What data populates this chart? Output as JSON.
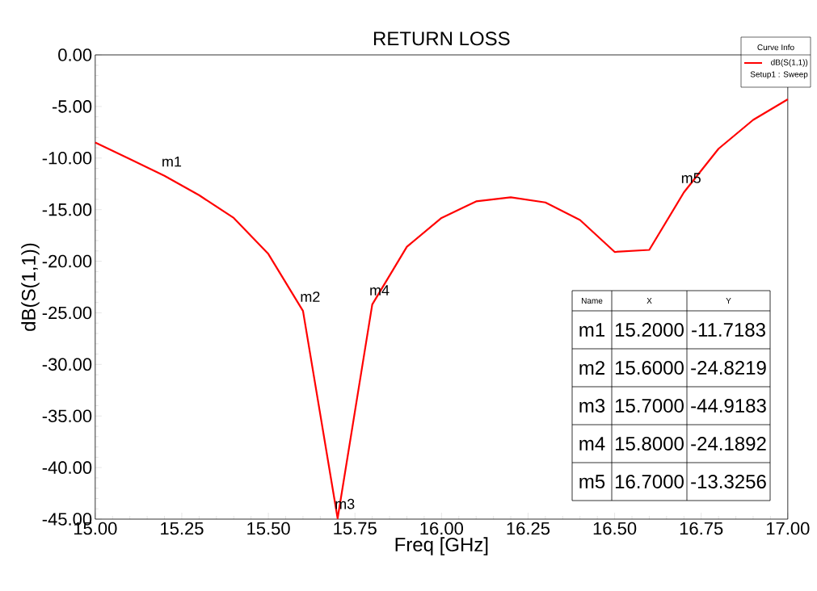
{
  "chart_data": {
    "type": "line",
    "title": "RETURN LOSS",
    "xlabel": "Freq [GHz]",
    "ylabel": "dB(S(1,1))",
    "legend_title": "Curve Info",
    "legend": "top right",
    "marker": "none",
    "line_style": "solid",
    "grid": false,
    "x": [
      15.0,
      15.1,
      15.2,
      15.3,
      15.4,
      15.5,
      15.6,
      15.7,
      15.8,
      15.9,
      16.0,
      16.1,
      16.2,
      16.3,
      16.4,
      16.5,
      16.6,
      16.7,
      16.8,
      16.9,
      17.0
    ],
    "series": [
      {
        "name": "dB(S(1,1))",
        "color": "#ff0000",
        "values": [
          -8.5,
          -10.1,
          -11.7183,
          -13.6,
          -15.8,
          -19.3,
          -24.8219,
          -44.9183,
          -24.1892,
          -18.6,
          -15.8,
          -14.2,
          -13.8,
          -14.3,
          -16.0,
          -19.1,
          -18.9,
          -13.3256,
          -9.1,
          -6.3,
          -4.3
        ]
      }
    ],
    "xlim": [
      15.0,
      17.0
    ],
    "xticks": [
      {
        "value": 15.0,
        "label": "15.00"
      },
      {
        "value": 15.25,
        "label": "15.25"
      },
      {
        "value": 15.5,
        "label": "15.50"
      },
      {
        "value": 15.75,
        "label": "15.75"
      },
      {
        "value": 16.0,
        "label": "16.00"
      },
      {
        "value": 16.25,
        "label": "16.25"
      },
      {
        "value": 16.5,
        "label": "16.50"
      },
      {
        "value": 16.75,
        "label": "16.75"
      },
      {
        "value": 17.0,
        "label": "17.00"
      }
    ],
    "ylim": [
      -45.0,
      0.0
    ],
    "yticks": [
      {
        "value": 0,
        "label": "0.00"
      },
      {
        "value": -5,
        "label": "-5.00"
      },
      {
        "value": -10,
        "label": "-10.00"
      },
      {
        "value": -15,
        "label": "-15.00"
      },
      {
        "value": -20,
        "label": "-20.00"
      },
      {
        "value": -25,
        "label": "-25.00"
      },
      {
        "value": -30,
        "label": "-30.00"
      },
      {
        "value": -35,
        "label": "-35.00"
      },
      {
        "value": -40,
        "label": "-40.00"
      },
      {
        "value": -45,
        "label": "-45.00"
      }
    ],
    "annotations": [
      {
        "text": "m1",
        "x": 15.2,
        "y": -11.7183
      },
      {
        "text": "m2",
        "x": 15.6,
        "y": -24.8219
      },
      {
        "text": "m3",
        "x": 15.7,
        "y": -44.9183
      },
      {
        "text": "m4",
        "x": 15.8,
        "y": -24.1892
      },
      {
        "text": "m5",
        "x": 16.7,
        "y": -13.3256
      },
      "Name",
      "X",
      "Y",
      "m1",
      "15.2000",
      "-11.7183",
      "m2",
      "15.6000",
      "-24.8219",
      "m3",
      "15.7000",
      "-44.9183",
      "m4",
      "15.8000",
      "-24.1892",
      "m5",
      "16.7000",
      "-13.3256",
      "Setup1 : Sweep"
    ]
  }
}
